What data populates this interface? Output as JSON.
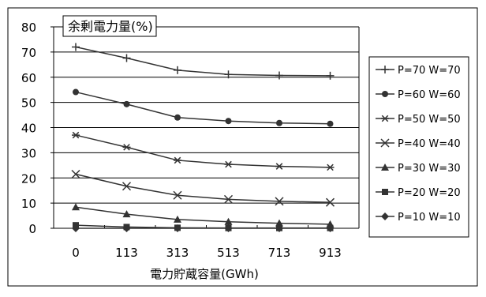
{
  "chart_data": {
    "type": "line",
    "title": "余剰電力量(%)",
    "xlabel": "電力貯蔵容量(GWh)",
    "ylabel": "",
    "categories": [
      "0",
      "113",
      "313",
      "513",
      "713",
      "913"
    ],
    "ylim": [
      0,
      80
    ],
    "yticks": [
      0,
      10,
      20,
      30,
      40,
      50,
      60,
      70,
      80
    ],
    "grid": true,
    "legend_position": "right",
    "series": [
      {
        "name": "P=70 W=70",
        "marker": "plus",
        "values": [
          72.0,
          67.6,
          62.8,
          61.1,
          60.7,
          60.6
        ]
      },
      {
        "name": "P=60 W=60",
        "marker": "circle",
        "values": [
          54.1,
          49.3,
          44.0,
          42.6,
          41.8,
          41.5
        ]
      },
      {
        "name": "P=50 W=50",
        "marker": "asterisk",
        "values": [
          37.0,
          32.2,
          27.0,
          25.4,
          24.6,
          24.2
        ]
      },
      {
        "name": "P=40 W=40",
        "marker": "x",
        "values": [
          21.5,
          16.7,
          13.1,
          11.5,
          10.7,
          10.3
        ]
      },
      {
        "name": "P=30 W=30",
        "marker": "triangle",
        "values": [
          8.4,
          5.6,
          3.5,
          2.6,
          2.0,
          1.6
        ]
      },
      {
        "name": "P=20 W=20",
        "marker": "square",
        "values": [
          1.2,
          0.5,
          0.2,
          0.1,
          0.1,
          0.1
        ]
      },
      {
        "name": "P=10 W=10",
        "marker": "diamond",
        "values": [
          0.0,
          0.0,
          0.0,
          0.0,
          0.0,
          0.0
        ]
      }
    ]
  },
  "colors": {
    "line": "#333333",
    "grid": "#000000",
    "background": "#ffffff"
  }
}
